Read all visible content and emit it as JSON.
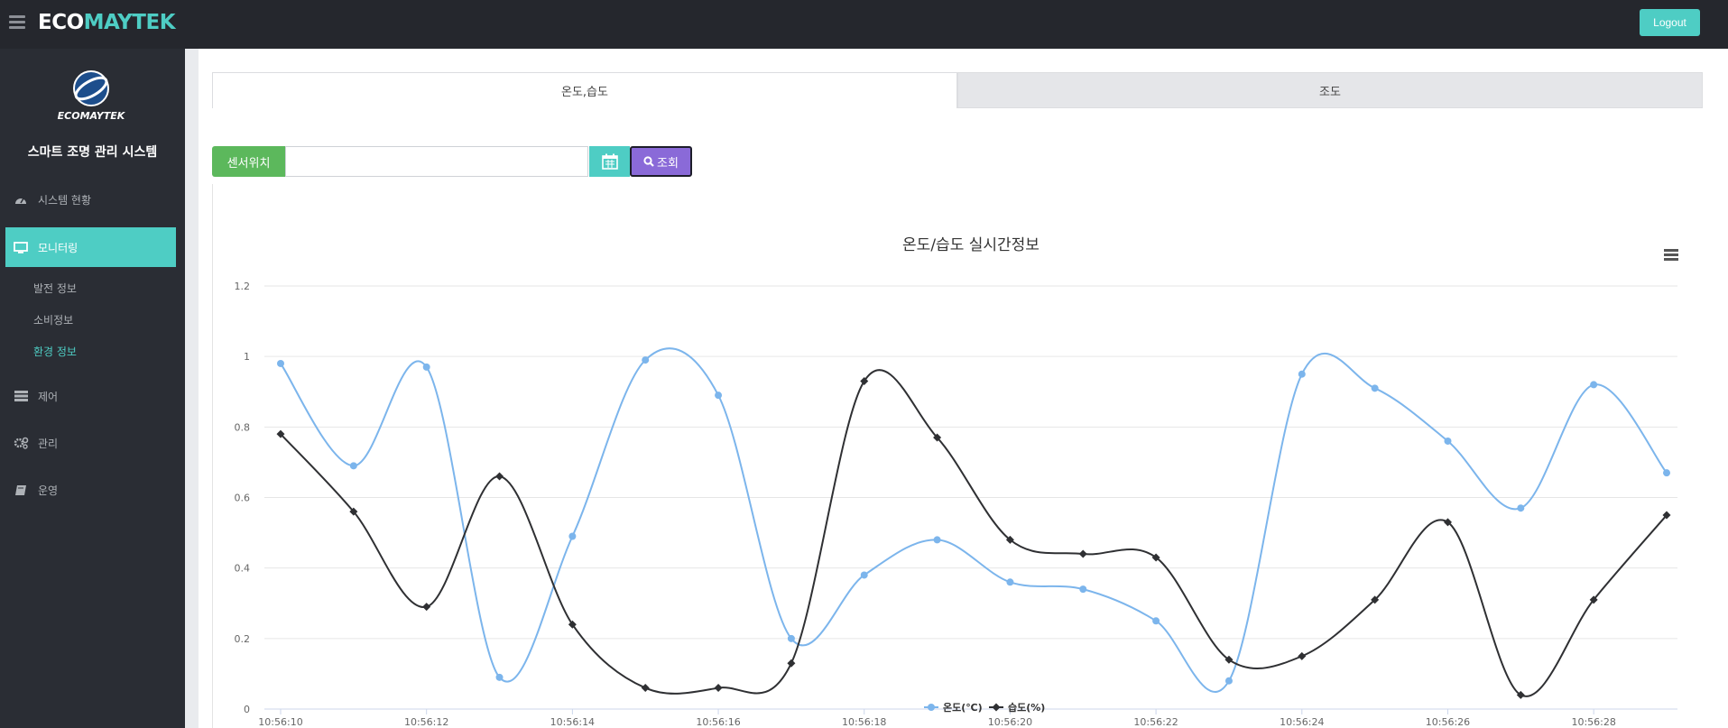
{
  "brand": {
    "part1": "ECO",
    "part2": "MAYTEK"
  },
  "topbar": {
    "logout_label": "Logout"
  },
  "sidebar": {
    "logo_text": "ECOMAYTEK",
    "system_title": "스마트 조명 관리 시스템",
    "menu": [
      {
        "label": "시스템 현황",
        "icon": "dashboard-icon"
      },
      {
        "label": "모니터링",
        "icon": "monitor-icon",
        "active": true
      },
      {
        "label": "제어",
        "icon": "server-icon"
      },
      {
        "label": "관리",
        "icon": "gears-icon"
      },
      {
        "label": "운영",
        "icon": "book-icon"
      }
    ],
    "submenu": [
      {
        "label": "발전 정보"
      },
      {
        "label": "소비정보"
      },
      {
        "label": "환경 정보",
        "active": true
      }
    ]
  },
  "tabs": [
    {
      "label": "온도,습도",
      "active": true
    },
    {
      "label": "조도",
      "active": false
    }
  ],
  "search": {
    "sensor_label": "센서위치",
    "sensor_value": "",
    "search_label": "조회"
  },
  "colors": {
    "accent": "#4ecdc4",
    "temp_series": "#7cb5ec",
    "humid_series": "#2f3033",
    "search_btn": "#8a6ad8",
    "sensor_label_bg": "#5cb85c"
  },
  "chart_data": {
    "type": "line",
    "title": "온도/습도 실시간정보",
    "xlabel": "",
    "ylabel": "",
    "ylim": [
      0,
      1.2
    ],
    "yticks": [
      "0",
      "0.2",
      "0.4",
      "0.6",
      "0.8",
      "1",
      "1.2"
    ],
    "xticks": [
      "10:56:10",
      "10:56:12",
      "10:56:14",
      "10:56:16",
      "10:56:18",
      "10:56:20",
      "10:56:22",
      "10:56:24",
      "10:56:26",
      "10:56:28"
    ],
    "x": [
      "10:56:10",
      "10:56:11",
      "10:56:12",
      "10:56:13",
      "10:56:14",
      "10:56:15",
      "10:56:16",
      "10:56:17",
      "10:56:18",
      "10:56:19",
      "10:56:20",
      "10:56:21",
      "10:56:22",
      "10:56:23",
      "10:56:24",
      "10:56:25",
      "10:56:26",
      "10:56:27",
      "10:56:28",
      "10:56:29"
    ],
    "series": [
      {
        "name": "온도(℃)",
        "marker": "circle",
        "values": [
          0.98,
          0.69,
          0.97,
          0.09,
          0.49,
          0.99,
          0.89,
          0.2,
          0.38,
          0.48,
          0.36,
          0.34,
          0.25,
          0.08,
          0.95,
          0.91,
          0.76,
          0.57,
          0.92,
          0.67
        ]
      },
      {
        "name": "습도(%)",
        "marker": "diamond",
        "values": [
          0.78,
          0.56,
          0.29,
          0.66,
          0.24,
          0.06,
          0.06,
          0.13,
          0.93,
          0.77,
          0.48,
          0.44,
          0.43,
          0.14,
          0.15,
          0.31,
          0.53,
          0.04,
          0.31,
          0.55
        ]
      }
    ],
    "grid": true,
    "legend": "bottom-center"
  }
}
